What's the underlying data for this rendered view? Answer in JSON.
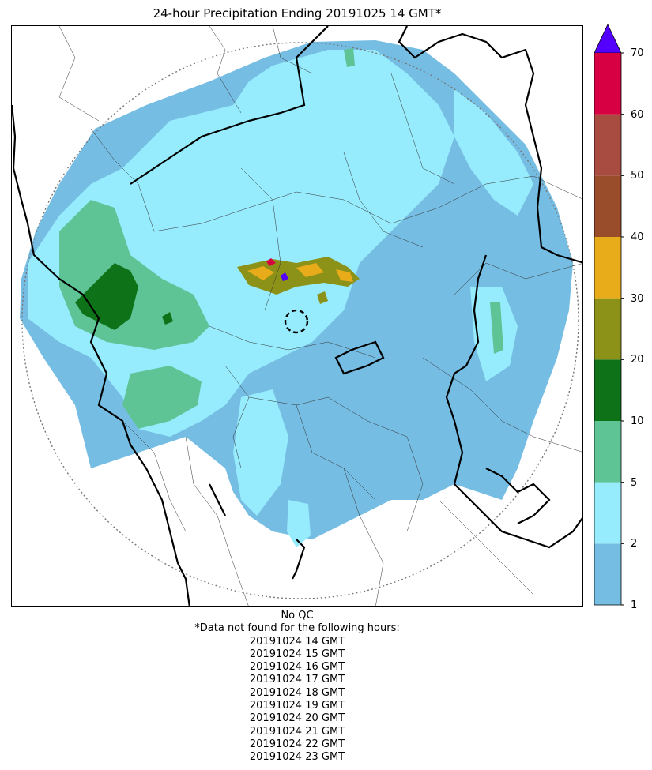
{
  "title": "24-hour Precipitation Ending 20191025 14 GMT*",
  "colorbar": {
    "ticks": [
      "1",
      "2",
      "5",
      "10",
      "20",
      "30",
      "40",
      "50",
      "60",
      "70"
    ],
    "colors": [
      "#76bde3",
      "#96ecfd",
      "#5ec496",
      "#0e7318",
      "#8c9218",
      "#e8ab1a",
      "#9a4d2a",
      "#a84c42",
      "#d60042"
    ],
    "extend_color": "#5400ff"
  },
  "footer": {
    "qc_note": "No QC",
    "missing_note": "*Data not found for the following hours:",
    "missing_hours": [
      "20191024 14 GMT",
      "20191024 15 GMT",
      "20191024 16 GMT",
      "20191024 17 GMT",
      "20191024 18 GMT",
      "20191024 19 GMT",
      "20191024 20 GMT",
      "20191024 21 GMT",
      "20191024 22 GMT",
      "20191024 23 GMT"
    ]
  }
}
